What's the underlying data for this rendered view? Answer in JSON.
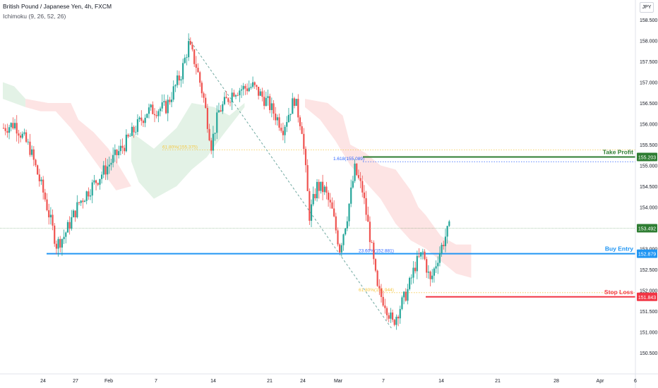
{
  "header": {
    "title": "British Pound / Japanese Yen, 4h, FXCM",
    "indicator": "Ichimoku (9, 26, 52, 26)"
  },
  "currency_button": "JPY",
  "colors": {
    "bull": "#26a69a",
    "bear": "#ef5350",
    "take_profit": "#2e7d32",
    "buy_entry": "#2196f3",
    "stop_loss": "#f23645",
    "cloud_bull": "#e3f2e6",
    "cloud_bear": "#fde4e4",
    "fib_line": "#f5c842",
    "trend_dash": "#6fa8a0",
    "current_price": "#2e7d32"
  },
  "chart_data": {
    "type": "candlestick",
    "symbol": "British Pound / Japanese Yen",
    "timeframe": "4h",
    "ylim": [
      150.3,
      158.75
    ],
    "y_ticks": [
      "158.500",
      "158.000",
      "157.500",
      "157.000",
      "156.500",
      "156.000",
      "155.500",
      "155.000",
      "154.500",
      "154.000",
      "153.500",
      "153.000",
      "152.500",
      "152.000",
      "151.500",
      "151.000",
      "150.500"
    ],
    "x_ticks": [
      "24",
      "27",
      "Feb",
      "7",
      "14",
      "21",
      "24",
      "Mar",
      "7",
      "14",
      "21",
      "28",
      "Apr",
      "6"
    ],
    "price_path": [
      {
        "t": 0,
        "p": 155.9
      },
      {
        "t": 3,
        "p": 156.0
      },
      {
        "t": 7,
        "p": 155.4
      },
      {
        "t": 11,
        "p": 154.2
      },
      {
        "t": 14,
        "p": 153.1
      },
      {
        "t": 16,
        "p": 153.3
      },
      {
        "t": 20,
        "p": 154.1
      },
      {
        "t": 26,
        "p": 154.8
      },
      {
        "t": 32,
        "p": 155.5
      },
      {
        "t": 38,
        "p": 156.3
      },
      {
        "t": 43,
        "p": 156.4
      },
      {
        "t": 47,
        "p": 157.2
      },
      {
        "t": 49,
        "p": 157.9
      },
      {
        "t": 51,
        "p": 157.4
      },
      {
        "t": 53,
        "p": 156.6
      },
      {
        "t": 55,
        "p": 155.5
      },
      {
        "t": 57,
        "p": 156.3
      },
      {
        "t": 61,
        "p": 156.8
      },
      {
        "t": 66,
        "p": 156.9
      },
      {
        "t": 70,
        "p": 156.5
      },
      {
        "t": 74,
        "p": 155.9
      },
      {
        "t": 77,
        "p": 156.6
      },
      {
        "t": 79,
        "p": 155.9
      },
      {
        "t": 81,
        "p": 153.8
      },
      {
        "t": 83,
        "p": 154.5
      },
      {
        "t": 85,
        "p": 154.4
      },
      {
        "t": 87,
        "p": 153.9
      },
      {
        "t": 89,
        "p": 153.0
      },
      {
        "t": 91,
        "p": 153.8
      },
      {
        "t": 93,
        "p": 154.9
      },
      {
        "t": 95,
        "p": 154.4
      },
      {
        "t": 97,
        "p": 153.3
      },
      {
        "t": 99,
        "p": 152.0
      },
      {
        "t": 101,
        "p": 151.7
      },
      {
        "t": 103,
        "p": 151.2
      },
      {
        "t": 105,
        "p": 151.6
      },
      {
        "t": 107,
        "p": 152.0
      },
      {
        "t": 109,
        "p": 152.6
      },
      {
        "t": 111,
        "p": 152.9
      },
      {
        "t": 113,
        "p": 152.2
      },
      {
        "t": 115,
        "p": 152.8
      },
      {
        "t": 117,
        "p": 153.3
      },
      {
        "t": 118,
        "p": 153.49
      }
    ],
    "cloud": [
      {
        "type": "bull",
        "points": [
          [
            0,
            157.0
          ],
          [
            3,
            156.9
          ],
          [
            6,
            156.6
          ],
          [
            6,
            156.4
          ],
          [
            3,
            156.5
          ],
          [
            0,
            156.6
          ]
        ]
      },
      {
        "type": "bear",
        "points": [
          [
            6,
            156.6
          ],
          [
            12,
            156.5
          ],
          [
            18,
            156.5
          ],
          [
            20,
            156.1
          ],
          [
            24,
            155.8
          ],
          [
            28,
            155.4
          ],
          [
            32,
            154.8
          ],
          [
            34,
            154.5
          ],
          [
            30,
            154.4
          ],
          [
            26,
            154.9
          ],
          [
            22,
            155.4
          ],
          [
            18,
            155.9
          ],
          [
            14,
            156.3
          ],
          [
            10,
            156.3
          ],
          [
            6,
            156.4
          ]
        ]
      },
      {
        "type": "bull",
        "points": [
          [
            34,
            155.8
          ],
          [
            40,
            155.4
          ],
          [
            46,
            155.9
          ],
          [
            50,
            156.5
          ],
          [
            56,
            156.4
          ],
          [
            60,
            156.2
          ],
          [
            64,
            156.5
          ],
          [
            64,
            156.4
          ],
          [
            58,
            155.7
          ],
          [
            54,
            155.2
          ],
          [
            50,
            154.9
          ],
          [
            46,
            154.5
          ],
          [
            40,
            154.2
          ],
          [
            36,
            154.6
          ],
          [
            34,
            155.1
          ]
        ]
      },
      {
        "type": "bear",
        "points": [
          [
            80,
            156.6
          ],
          [
            86,
            156.5
          ],
          [
            90,
            156.2
          ],
          [
            92,
            155.5
          ],
          [
            96,
            155.3
          ],
          [
            100,
            155.0
          ],
          [
            104,
            154.9
          ],
          [
            108,
            154.4
          ],
          [
            110,
            154.0
          ],
          [
            112,
            153.8
          ],
          [
            116,
            153.3
          ],
          [
            120,
            153.1
          ],
          [
            124,
            153.1
          ],
          [
            124,
            152.3
          ],
          [
            120,
            152.4
          ],
          [
            116,
            152.7
          ],
          [
            112,
            153.0
          ],
          [
            108,
            153.2
          ],
          [
            104,
            153.6
          ],
          [
            100,
            154.2
          ],
          [
            96,
            154.6
          ],
          [
            92,
            155.0
          ],
          [
            88,
            155.6
          ],
          [
            84,
            156.1
          ],
          [
            80,
            156.4
          ]
        ]
      }
    ],
    "levels": [
      {
        "name": "take_profit",
        "label": "Take Profit",
        "value": 155.203,
        "value_label": "155.203"
      },
      {
        "name": "buy_entry",
        "label": "Buy Entry",
        "value": 152.879,
        "value_label": "152.879"
      },
      {
        "name": "stop_loss",
        "label": "Stop Loss",
        "value": 151.843,
        "value_label": "151.843"
      }
    ],
    "current_price": {
      "value": 153.492,
      "value_label": "153.492"
    },
    "fib_lines": [
      {
        "label": "61.80%(155.375)",
        "value": 155.375
      },
      {
        "label": "1.618(155.089)",
        "value": 155.089
      },
      {
        "label": "23.60%(152.881)",
        "value": 152.881
      },
      {
        "label": "61.80%(151.944)",
        "value": 151.944
      }
    ],
    "trend_line": {
      "from": [
        49,
        158.05
      ],
      "to": [
        103,
        151.05
      ]
    }
  }
}
